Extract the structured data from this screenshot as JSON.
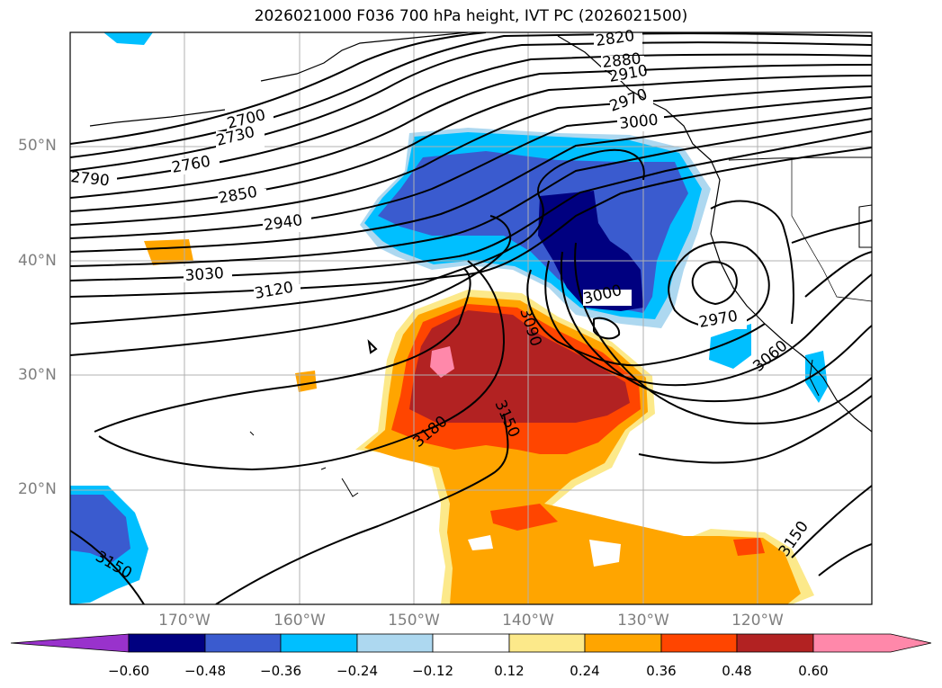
{
  "title": "2026021000 F036 700 hPa height, IVT PC (2026021500)",
  "map": {
    "extent": {
      "lon": [
        -180,
        -110
      ],
      "lat": [
        10,
        60
      ]
    },
    "lat_labels": [
      "50°N",
      "40°N",
      "30°N",
      "20°N"
    ],
    "lon_labels": [
      "170°W",
      "160°W",
      "150°W",
      "140°W",
      "130°W",
      "120°W"
    ],
    "gridlines": true,
    "coastlines": true
  },
  "contours": {
    "variable": "700 hPa height",
    "labels": [
      "2820",
      "2880",
      "2910",
      "2970",
      "3000",
      "2700",
      "2730",
      "2760",
      "2790",
      "2850",
      "2940",
      "3030",
      "3120",
      "3090",
      "3000",
      "2970",
      "3060",
      "3150",
      "3180",
      "3150",
      "3150"
    ]
  },
  "shading": {
    "variable": "IVT PC"
  },
  "colorbar": {
    "ticks": [
      "−0.60",
      "−0.48",
      "−0.36",
      "−0.24",
      "−0.12",
      "0.12",
      "0.24",
      "0.36",
      "0.48",
      "0.60"
    ],
    "colors": [
      "#9932cc",
      "#000080",
      "#3a5bcf",
      "#00bfff",
      "#add8f0",
      "#ffffff",
      "#fce98a",
      "#ffa500",
      "#ff4500",
      "#b22222",
      "#ff88aa"
    ]
  }
}
